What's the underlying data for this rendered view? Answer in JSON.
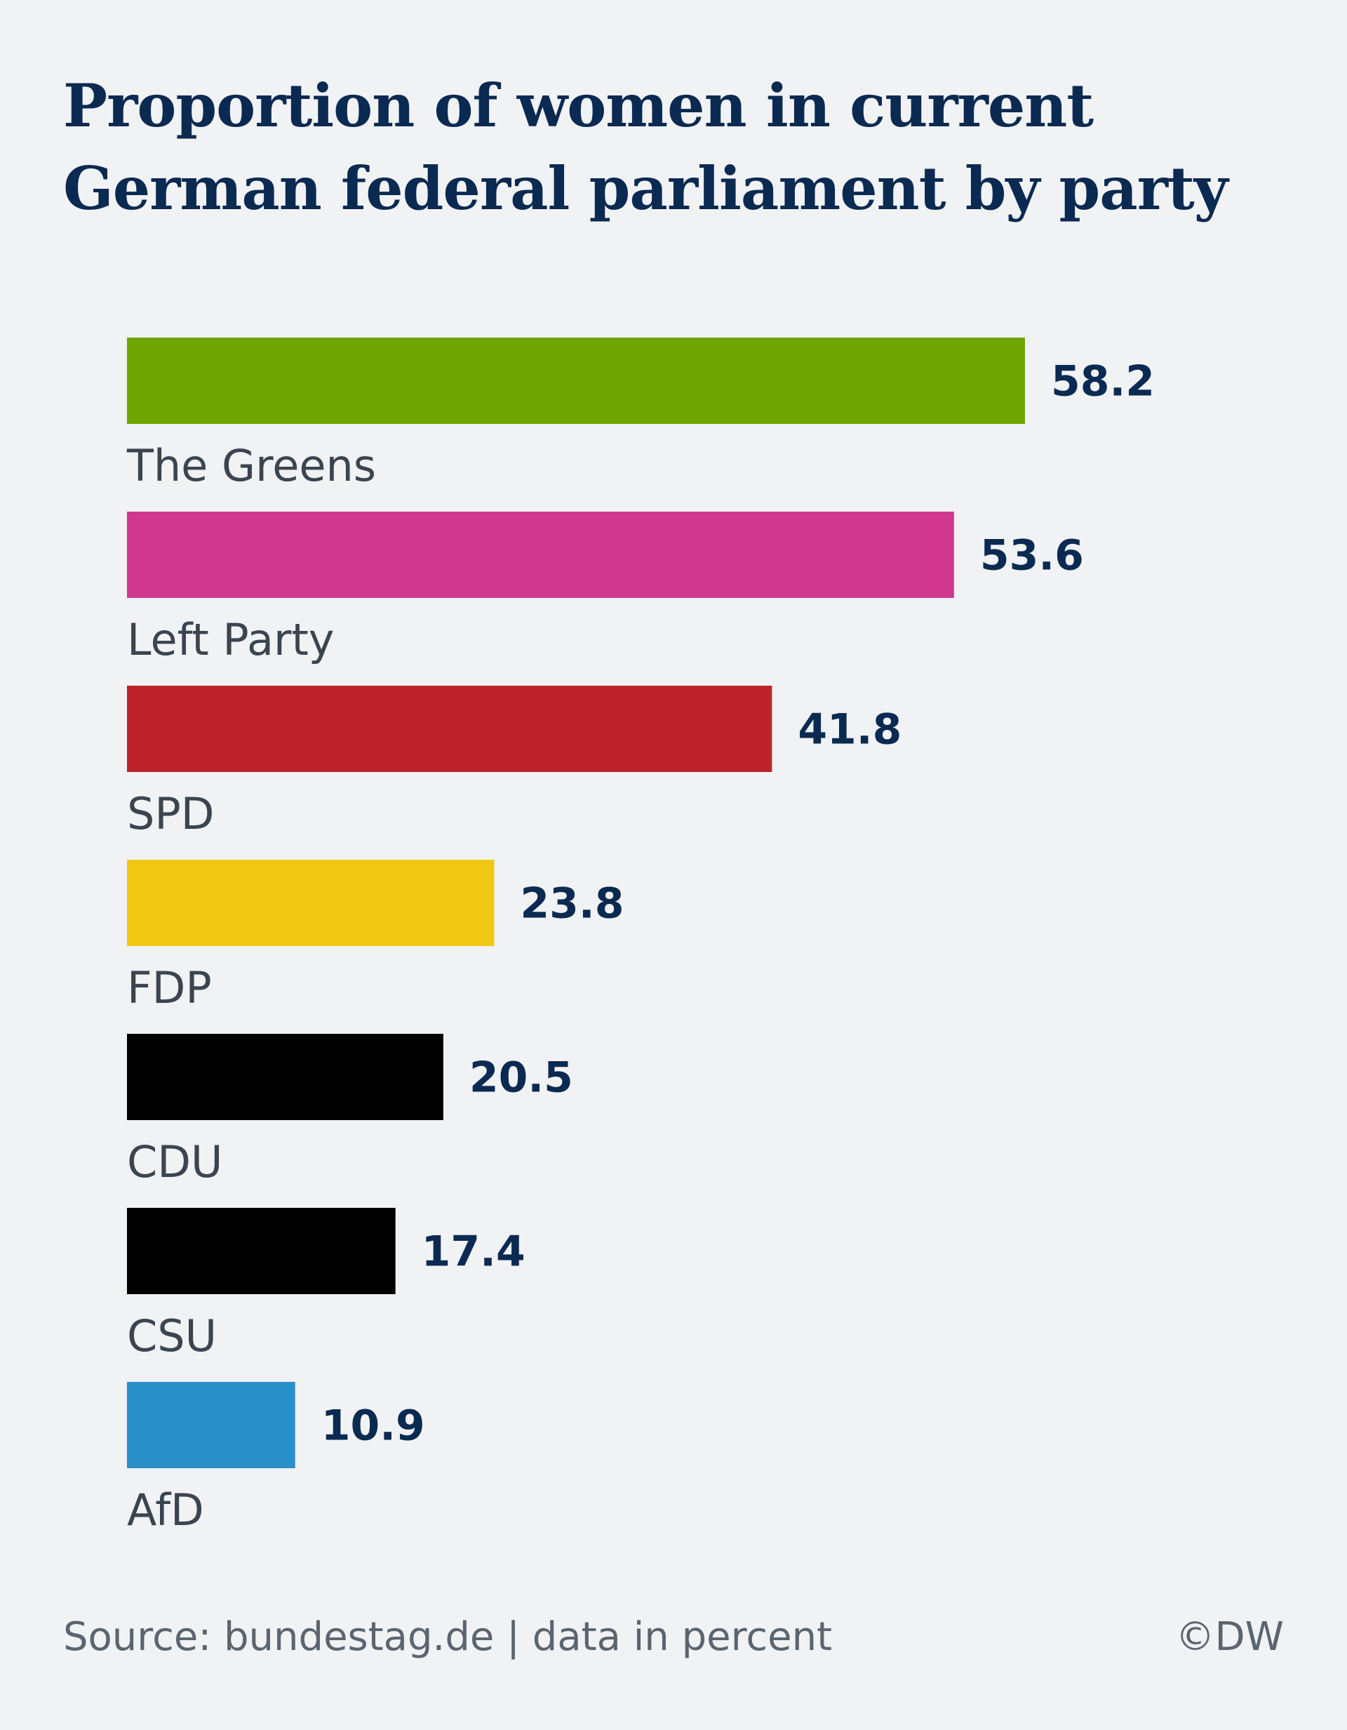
{
  "chart_data": {
    "type": "bar",
    "orientation": "horizontal",
    "title": "Proportion of women in current German federal parliament by party",
    "title_lines": [
      "Proportion of women in current",
      "German federal parliament by party"
    ],
    "xlabel": "",
    "ylabel": "",
    "unit": "percent",
    "xlim": [
      0,
      60
    ],
    "grid": false,
    "legend": "none",
    "categories": [
      "The Greens",
      "Left Party",
      "SPD",
      "FDP",
      "CDU",
      "CSU",
      "AfD"
    ],
    "values": [
      58.2,
      53.6,
      41.8,
      23.8,
      20.5,
      17.4,
      10.9
    ],
    "value_labels": [
      "58.2",
      "53.6",
      "41.8",
      "23.8",
      "20.5",
      "17.4",
      "10.9"
    ],
    "colors": [
      "#6fa500",
      "#cf388c",
      "#bd222d",
      "#f0c812",
      "#000000",
      "#000000",
      "#2a8ec8"
    ]
  },
  "footer": {
    "source": "Source: bundestag.de | data in percent",
    "credit": "©DW"
  }
}
